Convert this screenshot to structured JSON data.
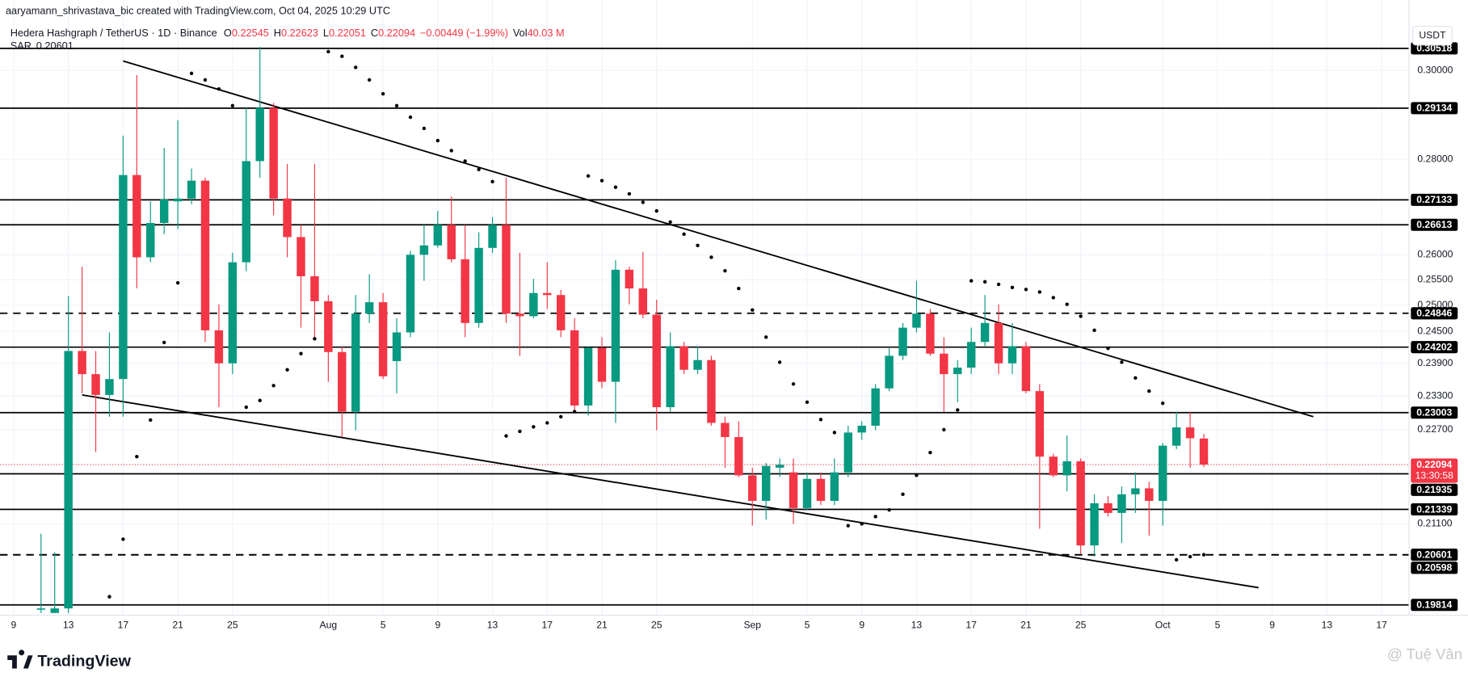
{
  "attribution": "aaryamann_shrivastava_bic created with TradingView.com, Oct 04, 2025 10:29 UTC",
  "brand": "TradingView",
  "watermark": "@ Tuệ Vân",
  "chart_data": {
    "type": "candlestick",
    "title": "Hedera Hashgraph / TetherUS · 1D · Binance",
    "ohlc_letters": [
      "O",
      "H",
      "L",
      "C"
    ],
    "change": "−0.00449 (−1.99%)",
    "volume_label": "Vol",
    "volume": "40.03 M",
    "currency": "USDT",
    "countdown": "13:30:58",
    "up_color": "#089981",
    "down_color": "#f23645",
    "log_scale": true,
    "grid": true,
    "xlim": [
      "2025-07-08",
      "2025-10-19"
    ],
    "ylim": [
      0.196,
      0.31
    ],
    "yticks": [
      {
        "value": 0.3,
        "label": "0.30000"
      },
      {
        "value": 0.28,
        "label": "0.28000"
      },
      {
        "value": 0.26,
        "label": "0.26000"
      },
      {
        "value": 0.255,
        "label": "0.25500"
      },
      {
        "value": 0.25,
        "label": "0.25000"
      },
      {
        "value": 0.245,
        "label": "0.24500"
      },
      {
        "value": 0.239,
        "label": "0.23900"
      },
      {
        "value": 0.233,
        "label": "0.23300"
      },
      {
        "value": 0.227,
        "label": "0.22700"
      },
      {
        "value": 0.211,
        "label": "0.21100"
      }
    ],
    "xticks": [
      {
        "value": "2025-07-09",
        "label": "9"
      },
      {
        "value": "2025-07-13",
        "label": "13"
      },
      {
        "value": "2025-07-17",
        "label": "17"
      },
      {
        "value": "2025-07-21",
        "label": "21"
      },
      {
        "value": "2025-07-25",
        "label": "25"
      },
      {
        "value": "2025-08-01",
        "label": "Aug"
      },
      {
        "value": "2025-08-05",
        "label": "5"
      },
      {
        "value": "2025-08-09",
        "label": "9"
      },
      {
        "value": "2025-08-13",
        "label": "13"
      },
      {
        "value": "2025-08-17",
        "label": "17"
      },
      {
        "value": "2025-08-21",
        "label": "21"
      },
      {
        "value": "2025-08-25",
        "label": "25"
      },
      {
        "value": "2025-09-01",
        "label": "Sep"
      },
      {
        "value": "2025-09-05",
        "label": "5"
      },
      {
        "value": "2025-09-09",
        "label": "9"
      },
      {
        "value": "2025-09-13",
        "label": "13"
      },
      {
        "value": "2025-09-17",
        "label": "17"
      },
      {
        "value": "2025-09-21",
        "label": "21"
      },
      {
        "value": "2025-09-25",
        "label": "25"
      },
      {
        "value": "2025-10-01",
        "label": "Oct"
      },
      {
        "value": "2025-10-05",
        "label": "5"
      },
      {
        "value": "2025-10-09",
        "label": "9"
      },
      {
        "value": "2025-10-13",
        "label": "13"
      },
      {
        "value": "2025-10-17",
        "label": "17"
      }
    ],
    "x": [
      "2025-07-11",
      "2025-07-12",
      "2025-07-13",
      "2025-07-14",
      "2025-07-15",
      "2025-07-16",
      "2025-07-17",
      "2025-07-18",
      "2025-07-19",
      "2025-07-20",
      "2025-07-21",
      "2025-07-22",
      "2025-07-23",
      "2025-07-24",
      "2025-07-25",
      "2025-07-26",
      "2025-07-27",
      "2025-07-28",
      "2025-07-29",
      "2025-07-30",
      "2025-07-31",
      "2025-08-01",
      "2025-08-02",
      "2025-08-03",
      "2025-08-04",
      "2025-08-05",
      "2025-08-06",
      "2025-08-07",
      "2025-08-08",
      "2025-08-09",
      "2025-08-10",
      "2025-08-11",
      "2025-08-12",
      "2025-08-13",
      "2025-08-14",
      "2025-08-15",
      "2025-08-16",
      "2025-08-17",
      "2025-08-18",
      "2025-08-19",
      "2025-08-20",
      "2025-08-21",
      "2025-08-22",
      "2025-08-23",
      "2025-08-24",
      "2025-08-25",
      "2025-08-26",
      "2025-08-27",
      "2025-08-28",
      "2025-08-29",
      "2025-08-30",
      "2025-08-31",
      "2025-09-01",
      "2025-09-02",
      "2025-09-03",
      "2025-09-04",
      "2025-09-05",
      "2025-09-06",
      "2025-09-07",
      "2025-09-08",
      "2025-09-09",
      "2025-09-10",
      "2025-09-11",
      "2025-09-12",
      "2025-09-13",
      "2025-09-14",
      "2025-09-15",
      "2025-09-16",
      "2025-09-17",
      "2025-09-18",
      "2025-09-19",
      "2025-09-20",
      "2025-09-21",
      "2025-09-22",
      "2025-09-23",
      "2025-09-24",
      "2025-09-25",
      "2025-09-26",
      "2025-09-27",
      "2025-09-28",
      "2025-09-29",
      "2025-09-30",
      "2025-10-01",
      "2025-10-02",
      "2025-10-03",
      "2025-10-04"
    ],
    "open": [
      0.1974,
      0.1969,
      0.1976,
      0.2413,
      0.237,
      0.2332,
      0.2361,
      0.2766,
      0.2595,
      0.2665,
      0.271,
      0.2716,
      0.2754,
      0.2452,
      0.239,
      0.2585,
      0.2796,
      0.2914,
      0.2716,
      0.2636,
      0.2557,
      0.2508,
      0.2411,
      0.2302,
      0.2484,
      0.2506,
      0.2394,
      0.2448,
      0.26,
      0.2619,
      0.2661,
      0.2591,
      0.2466,
      0.2614,
      0.2661,
      0.2484,
      0.2479,
      0.2524,
      0.252,
      0.2452,
      0.2313,
      0.2419,
      0.2356,
      0.257,
      0.2533,
      0.2482,
      0.231,
      0.2422,
      0.2378,
      0.2396,
      0.2282,
      0.2257,
      0.2191,
      0.2148,
      0.2204,
      0.2196,
      0.2136,
      0.2185,
      0.2148,
      0.2196,
      0.2265,
      0.2277,
      0.2344,
      0.2404,
      0.2457,
      0.2484,
      0.2408,
      0.237,
      0.2382,
      0.243,
      0.2466,
      0.239,
      0.2422,
      0.2339,
      0.2223,
      0.2191,
      0.2215,
      0.2075,
      0.2144,
      0.2128,
      0.2159,
      0.2169,
      0.2148,
      0.2242,
      0.2274,
      0.22545
    ],
    "high": [
      0.2094,
      0.2064,
      0.2518,
      0.2576,
      0.2413,
      0.2448,
      0.2852,
      0.2989,
      0.271,
      0.2825,
      0.2886,
      0.278,
      0.276,
      0.2502,
      0.2604,
      0.2914,
      0.3055,
      0.2925,
      0.279,
      0.2661,
      0.279,
      0.252,
      0.2422,
      0.252,
      0.2561,
      0.2524,
      0.2475,
      0.2608,
      0.2661,
      0.269,
      0.272,
      0.2661,
      0.2646,
      0.2677,
      0.276,
      0.2604,
      0.2552,
      0.2585,
      0.253,
      0.2475,
      0.2422,
      0.2439,
      0.2589,
      0.2576,
      0.2606,
      0.2511,
      0.2448,
      0.243,
      0.2422,
      0.2404,
      0.2293,
      0.2285,
      0.2204,
      0.2212,
      0.222,
      0.222,
      0.2196,
      0.2196,
      0.222,
      0.2277,
      0.2285,
      0.2352,
      0.2418,
      0.2466,
      0.2548,
      0.2493,
      0.2439,
      0.2396,
      0.2457,
      0.252,
      0.2502,
      0.2466,
      0.243,
      0.2352,
      0.2228,
      0.226,
      0.222,
      0.2159,
      0.2156,
      0.2172,
      0.2196,
      0.218,
      0.2247,
      0.2302,
      0.2302,
      0.22623
    ],
    "low": [
      0.1969,
      0.1969,
      0.1969,
      0.2335,
      0.2231,
      0.2293,
      0.2293,
      0.2533,
      0.2585,
      0.2642,
      0.2652,
      0.2704,
      0.243,
      0.231,
      0.237,
      0.2567,
      0.276,
      0.2681,
      0.2595,
      0.2457,
      0.2439,
      0.2356,
      0.2257,
      0.2269,
      0.2466,
      0.2361,
      0.2335,
      0.2439,
      0.2548,
      0.2614,
      0.2585,
      0.2439,
      0.2457,
      0.2604,
      0.2466,
      0.2404,
      0.2475,
      0.2493,
      0.2439,
      0.2302,
      0.2295,
      0.2344,
      0.2282,
      0.2502,
      0.2475,
      0.2269,
      0.2302,
      0.237,
      0.237,
      0.2277,
      0.2204,
      0.2188,
      0.2107,
      0.2117,
      0.2188,
      0.211,
      0.2133,
      0.2141,
      0.2141,
      0.2188,
      0.2252,
      0.2269,
      0.2339,
      0.2396,
      0.2448,
      0.2404,
      0.2302,
      0.2319,
      0.237,
      0.2422,
      0.237,
      0.237,
      0.2335,
      0.2102,
      0.2188,
      0.2164,
      0.2061,
      0.2057,
      0.2122,
      0.2079,
      0.2128,
      0.2091,
      0.2107,
      0.2236,
      0.2204,
      0.22051
    ],
    "close": [
      0.1976,
      0.1976,
      0.2413,
      0.237,
      0.2332,
      0.2361,
      0.2766,
      0.2595,
      0.2665,
      0.2714,
      0.2716,
      0.2754,
      0.2452,
      0.239,
      0.2585,
      0.2796,
      0.2914,
      0.2716,
      0.2636,
      0.2557,
      0.2508,
      0.2411,
      0.2302,
      0.2484,
      0.2506,
      0.2366,
      0.2448,
      0.26,
      0.2619,
      0.2661,
      0.2591,
      0.2466,
      0.2614,
      0.2661,
      0.2484,
      0.2479,
      0.2524,
      0.252,
      0.2452,
      0.2313,
      0.2419,
      0.2356,
      0.257,
      0.2533,
      0.2482,
      0.231,
      0.2422,
      0.2378,
      0.2396,
      0.2282,
      0.2257,
      0.2191,
      0.2148,
      0.2207,
      0.2209,
      0.2136,
      0.2185,
      0.2148,
      0.2196,
      0.2265,
      0.2277,
      0.2344,
      0.2404,
      0.2457,
      0.2484,
      0.2408,
      0.237,
      0.2382,
      0.243,
      0.2466,
      0.239,
      0.2422,
      0.2339,
      0.2223,
      0.2191,
      0.2215,
      0.2075,
      0.2144,
      0.2128,
      0.2159,
      0.2169,
      0.2148,
      0.2242,
      0.2274,
      0.2255,
      0.22094
    ],
    "sar": {
      "name": "SAR",
      "color": "#000000",
      "values": [
        null,
        null,
        null,
        null,
        null,
        0.1994,
        0.2085,
        0.2223,
        0.2287,
        0.2429,
        0.2544,
        0.2993,
        0.2978,
        0.2957,
        0.2919,
        0.231,
        0.2322,
        0.2349,
        0.2378,
        0.2408,
        0.2436,
        0.3044,
        0.3033,
        0.3007,
        0.2978,
        0.2946,
        0.2919,
        0.2893,
        0.2868,
        0.2841,
        0.2819,
        0.2796,
        0.2778,
        0.2752,
        0.2259,
        0.2267,
        0.2275,
        0.2282,
        0.2293,
        0.2302,
        0.2764,
        0.2754,
        0.274,
        0.2726,
        0.2708,
        0.269,
        0.2667,
        0.2642,
        0.2619,
        0.2595,
        0.2568,
        0.2533,
        0.2491,
        0.2439,
        0.2392,
        0.2352,
        0.2319,
        0.2288,
        0.2265,
        0.2107,
        0.211,
        0.2122,
        0.2133,
        0.2159,
        0.2191,
        0.223,
        0.227,
        0.2305,
        0.2548,
        0.2546,
        0.2541,
        0.2535,
        0.2531,
        0.2526,
        0.2515,
        0.2502,
        0.2479,
        0.2452,
        0.2418,
        0.2392,
        0.2363,
        0.2339,
        0.2317,
        0.2052,
        0.2057,
        0.20601
      ]
    },
    "levels": [
      {
        "value": 0.30518,
        "dashed": false
      },
      {
        "value": 0.29134,
        "dashed": false
      },
      {
        "value": 0.27133,
        "dashed": false
      },
      {
        "value": 0.26613,
        "dashed": false
      },
      {
        "value": 0.24846,
        "dashed": true
      },
      {
        "value": 0.24202,
        "dashed": false
      },
      {
        "value": 0.23003,
        "dashed": false
      },
      {
        "value": 0.21935,
        "dashed": false
      },
      {
        "value": 0.21339,
        "dashed": false
      },
      {
        "value": 0.20601,
        "dashed": true
      },
      {
        "value": 0.20598,
        "dashed": true
      },
      {
        "value": 0.19814,
        "dashed": false
      }
    ],
    "trendlines": [
      {
        "x": [
          "2025-07-17",
          "2025-10-12"
        ],
        "values": [
          0.3022,
          0.2293
        ]
      },
      {
        "x": [
          "2025-07-14",
          "2025-10-08"
        ],
        "values": [
          0.2332,
          0.2008
        ]
      }
    ]
  }
}
